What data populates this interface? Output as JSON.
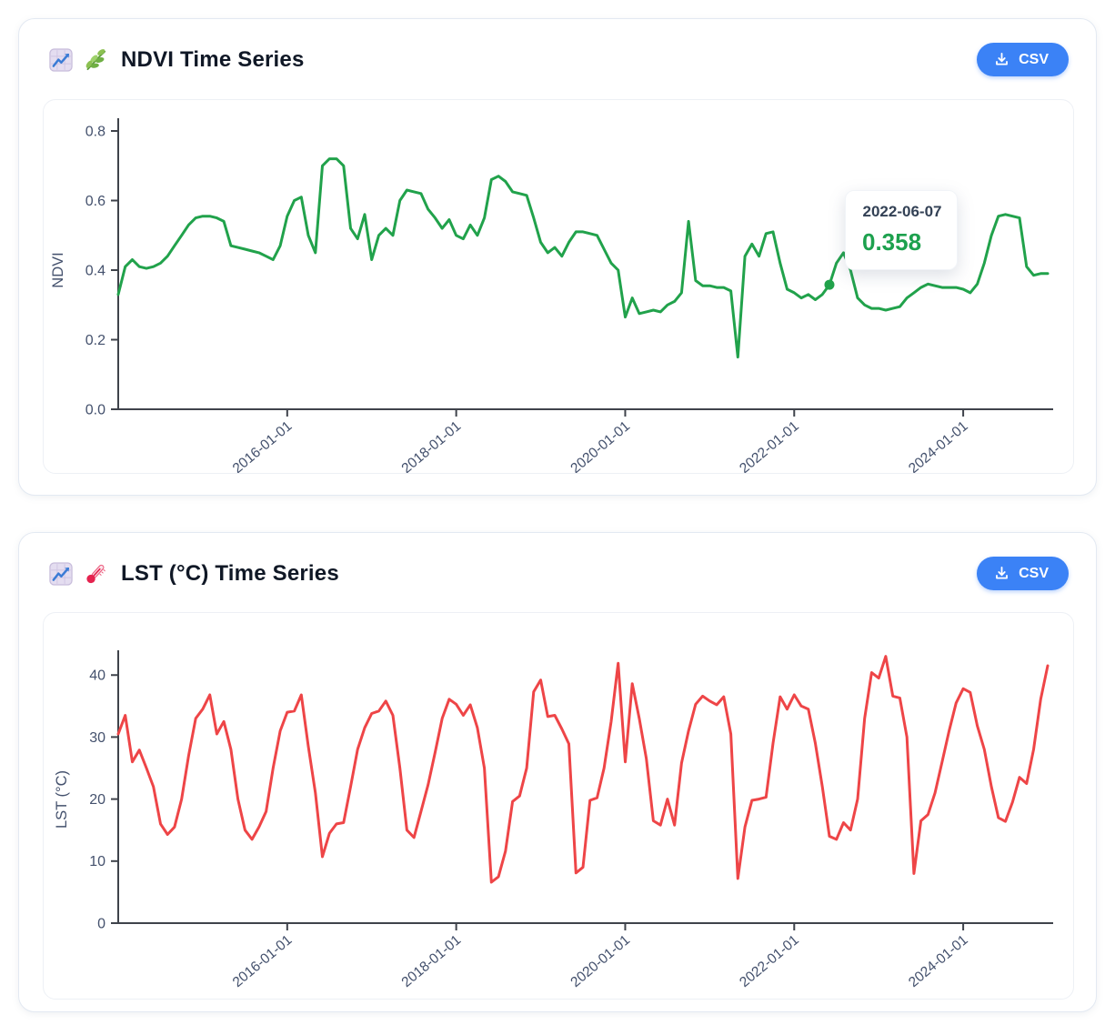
{
  "cards": [
    {
      "title": "NDVI Time Series",
      "icons": [
        "chart-increasing-icon",
        "herb-icon"
      ],
      "csv_button": {
        "label": "CSV",
        "icon": "download-icon"
      }
    },
    {
      "title": "LST (°C) Time Series",
      "icons": [
        "chart-increasing-icon",
        "thermometer-icon"
      ],
      "csv_button": {
        "label": "CSV",
        "icon": "download-icon"
      }
    }
  ],
  "colors": {
    "ndvi_line": "#21a24b",
    "lst_line": "#ee4547",
    "button_blue": "#3b82f6",
    "axis": "#3f434b",
    "tick_label": "#44516d",
    "tooltip_date": "#334155",
    "tooltip_value": "#1da14e"
  },
  "chart_data": [
    {
      "type": "line",
      "title": "NDVI Time Series",
      "ylabel": "NDVI",
      "line_color": "#21a24b",
      "ylim": [
        0.0,
        0.8
      ],
      "grid": false,
      "legend": "none",
      "x_start_month": "2014-01",
      "x_end_month": "2025-01",
      "x_step": "1 month",
      "x_tick_labels": [
        "2016-01-01",
        "2018-01-01",
        "2020-01-01",
        "2022-01-01",
        "2024-01-01"
      ],
      "y_tick_values": [
        0.0,
        0.2,
        0.4,
        0.6,
        0.8
      ],
      "y_tick_labels": [
        "0.0",
        "0.2",
        "0.4",
        "0.6",
        "0.8"
      ],
      "tooltip": {
        "date": "2022-06-07",
        "value": 0.358,
        "value_label": "0.358"
      },
      "values": [
        0.33,
        0.41,
        0.43,
        0.41,
        0.405,
        0.41,
        0.42,
        0.44,
        0.47,
        0.5,
        0.53,
        0.55,
        0.555,
        0.555,
        0.55,
        0.54,
        0.47,
        0.465,
        0.46,
        0.455,
        0.45,
        0.44,
        0.43,
        0.47,
        0.555,
        0.6,
        0.61,
        0.5,
        0.45,
        0.7,
        0.72,
        0.72,
        0.7,
        0.52,
        0.49,
        0.56,
        0.43,
        0.5,
        0.52,
        0.5,
        0.6,
        0.63,
        0.625,
        0.62,
        0.575,
        0.55,
        0.52,
        0.545,
        0.5,
        0.49,
        0.53,
        0.5,
        0.55,
        0.66,
        0.67,
        0.655,
        0.625,
        0.62,
        0.615,
        0.55,
        0.48,
        0.45,
        0.465,
        0.44,
        0.48,
        0.51,
        0.51,
        0.505,
        0.5,
        0.46,
        0.42,
        0.4,
        0.265,
        0.32,
        0.275,
        0.28,
        0.285,
        0.28,
        0.3,
        0.31,
        0.335,
        0.54,
        0.37,
        0.355,
        0.355,
        0.35,
        0.35,
        0.34,
        0.15,
        0.44,
        0.475,
        0.44,
        0.505,
        0.51,
        0.42,
        0.345,
        0.335,
        0.32,
        0.33,
        0.315,
        0.33,
        0.358,
        0.42,
        0.45,
        0.4,
        0.32,
        0.3,
        0.29,
        0.29,
        0.285,
        0.29,
        0.295,
        0.32,
        0.335,
        0.35,
        0.36,
        0.355,
        0.35,
        0.35,
        0.35,
        0.345,
        0.335,
        0.36,
        0.42,
        0.5,
        0.555,
        0.56,
        0.555,
        0.55,
        0.41,
        0.385,
        0.39,
        0.39
      ]
    },
    {
      "type": "line",
      "title": "LST (°C) Time Series",
      "ylabel": "LST (°C)",
      "line_color": "#ee4547",
      "ylim": [
        0,
        44
      ],
      "grid": false,
      "legend": "none",
      "x_start_month": "2014-01",
      "x_end_month": "2025-01",
      "x_step": "1 month",
      "x_tick_labels": [
        "2016-01-01",
        "2018-01-01",
        "2020-01-01",
        "2022-01-01",
        "2024-01-01"
      ],
      "y_tick_values": [
        0,
        10,
        20,
        30,
        40
      ],
      "y_tick_labels": [
        "0",
        "10",
        "20",
        "30",
        "40"
      ],
      "values": [
        30.5,
        33.5,
        26.0,
        27.9,
        25.0,
        22.0,
        16.0,
        14.3,
        15.5,
        20.0,
        27.0,
        33.0,
        34.5,
        36.8,
        30.5,
        32.5,
        28.0,
        20.0,
        15.0,
        13.5,
        15.5,
        18.0,
        25.0,
        31.0,
        34.0,
        34.2,
        36.8,
        28.5,
        21.0,
        10.7,
        14.5,
        16.0,
        16.2,
        22.0,
        28.0,
        31.5,
        33.8,
        34.2,
        35.8,
        33.5,
        25.0,
        15.0,
        13.8,
        18.0,
        22.3,
        27.5,
        33.0,
        36.1,
        35.3,
        33.5,
        35.2,
        31.5,
        25.0,
        6.6,
        7.5,
        11.6,
        19.6,
        20.5,
        25.0,
        37.3,
        39.2,
        33.3,
        33.5,
        31.3,
        28.9,
        8.1,
        9.0,
        19.8,
        20.2,
        25.0,
        32.5,
        41.9,
        26.0,
        38.6,
        33.0,
        26.5,
        16.5,
        15.8,
        20.0,
        15.8,
        25.8,
        31.0,
        35.3,
        36.6,
        35.8,
        35.2,
        36.5,
        30.5,
        7.2,
        15.5,
        19.8,
        20.0,
        20.3,
        29.0,
        36.5,
        34.5,
        36.8,
        35.0,
        34.5,
        29.0,
        22.0,
        14.0,
        13.5,
        16.2,
        15.0,
        20.0,
        33.0,
        40.4,
        39.5,
        43.0,
        36.6,
        36.3,
        30.0,
        8.0,
        16.5,
        17.5,
        21.0,
        26.0,
        31.0,
        35.5,
        37.8,
        37.2,
        31.8,
        28.0,
        22.0,
        17.0,
        16.4,
        19.5,
        23.5,
        22.5,
        28.0,
        36.1,
        41.5
      ]
    }
  ]
}
